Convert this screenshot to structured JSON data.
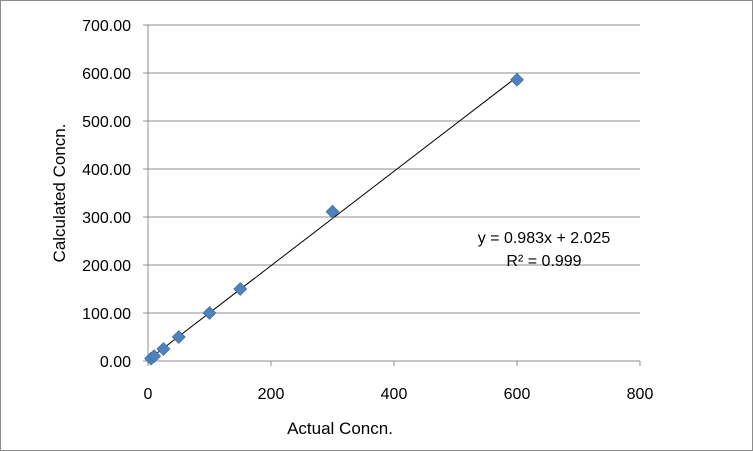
{
  "chart_data": {
    "type": "scatter",
    "title": "",
    "xlabel": "Actual Concn.",
    "ylabel": "Calculated  Concn.",
    "xlim": [
      0,
      800
    ],
    "ylim": [
      0,
      700
    ],
    "x_ticks": [
      0,
      200,
      400,
      600,
      800
    ],
    "x_tick_labels": [
      "0",
      "200",
      "400",
      "600",
      "800"
    ],
    "y_ticks": [
      0,
      100,
      200,
      300,
      400,
      500,
      600,
      700
    ],
    "y_tick_labels": [
      "0.00",
      "100.00",
      "200.00",
      "300.00",
      "400.00",
      "500.00",
      "600.00",
      "700.00"
    ],
    "grid": {
      "horizontal": true,
      "vertical": false
    },
    "legend": "none",
    "series": [
      {
        "marker": "diamond",
        "color": "#4f81bd",
        "points": [
          {
            "x": 5,
            "y": 5
          },
          {
            "x": 10,
            "y": 10
          },
          {
            "x": 25,
            "y": 25
          },
          {
            "x": 50,
            "y": 50
          },
          {
            "x": 100,
            "y": 100
          },
          {
            "x": 150,
            "y": 150
          },
          {
            "x": 300,
            "y": 311
          },
          {
            "x": 600,
            "y": 586
          }
        ]
      }
    ],
    "trendline": {
      "type": "linear",
      "slope": 0.983,
      "intercept": 2.025,
      "x_range": [
        0,
        600
      ],
      "color": "#000000",
      "equation_label": "y = 0.983x + 2.025",
      "r2_label": "R² = 0.999"
    }
  }
}
